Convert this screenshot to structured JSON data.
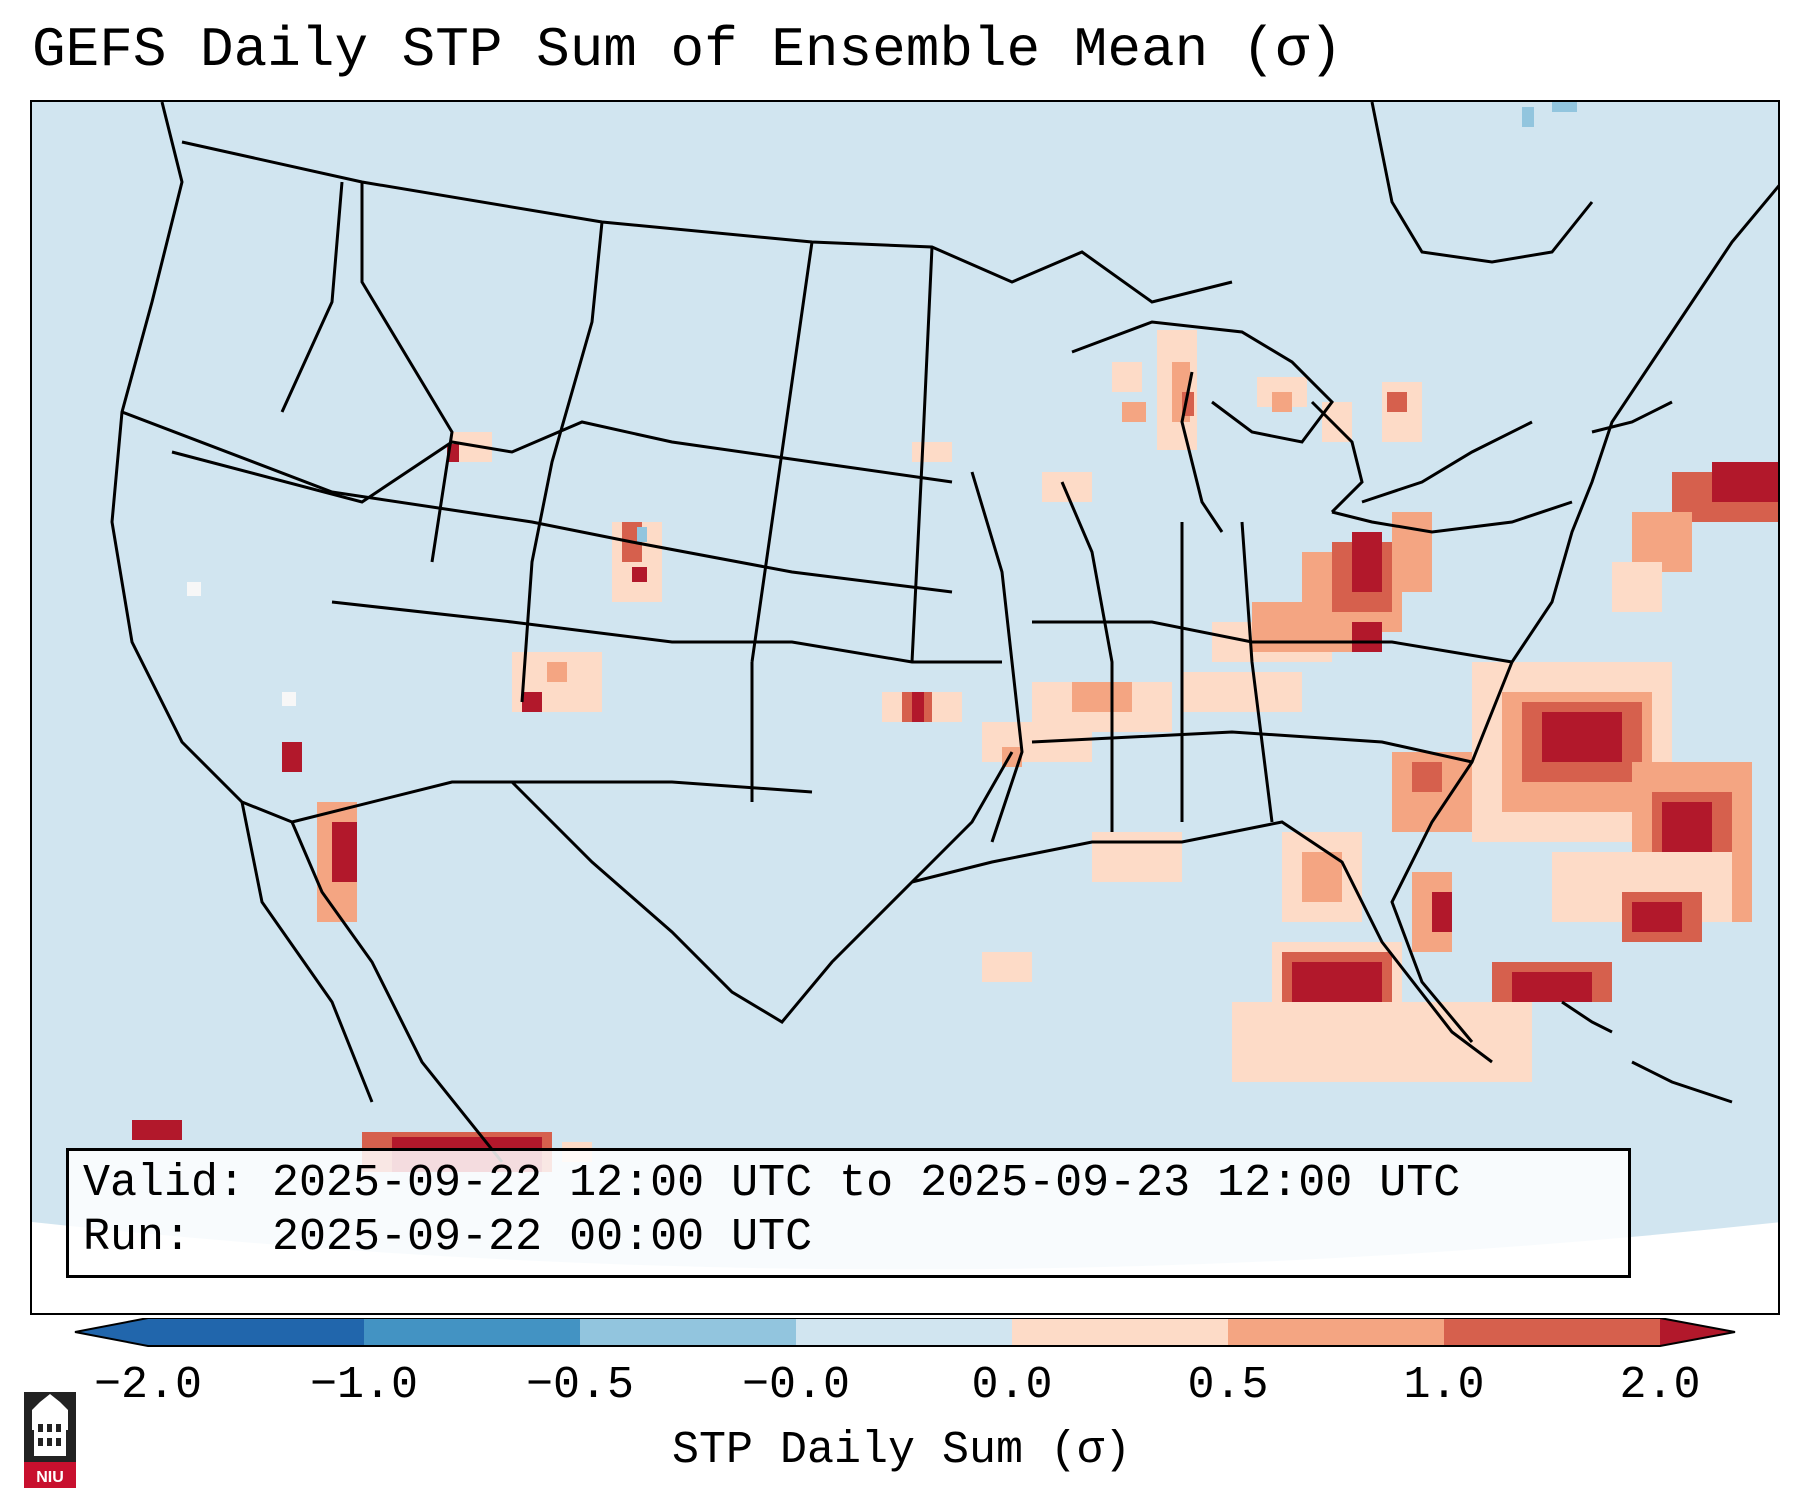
{
  "title": "GEFS Daily STP Sum of Ensemble Mean (σ)",
  "info": {
    "valid_line": "Valid: 2025-09-22 12:00 UTC to 2025-09-23 12:00 UTC",
    "run_line": "Run:   2025-09-22 00:00 UTC"
  },
  "colorbar": {
    "label": "STP Daily Sum (σ)",
    "ticks": [
      "−2.0",
      "−1.0",
      "−0.5",
      "−0.0",
      "0.0",
      "0.5",
      "1.0",
      "2.0"
    ],
    "bin_colors": [
      "#2166ac",
      "#4393c3",
      "#92c5de",
      "#d1e5f0",
      "#f7f7f7",
      "#fddbc7",
      "#f4a582",
      "#d6604d",
      "#b2182b"
    ]
  },
  "map": {
    "background_color": "#d1e5f0",
    "outside_color": "#ffffff",
    "positive_regions": [
      "Great Lakes / Michigan",
      "Ohio Valley",
      "Southeast US Atlantic coast",
      "Western Atlantic",
      "Gulf of Mexico / Florida",
      "Southern Plains",
      "Gulf of California"
    ]
  },
  "logo": {
    "text": "NIU",
    "color": "#c8102e"
  }
}
